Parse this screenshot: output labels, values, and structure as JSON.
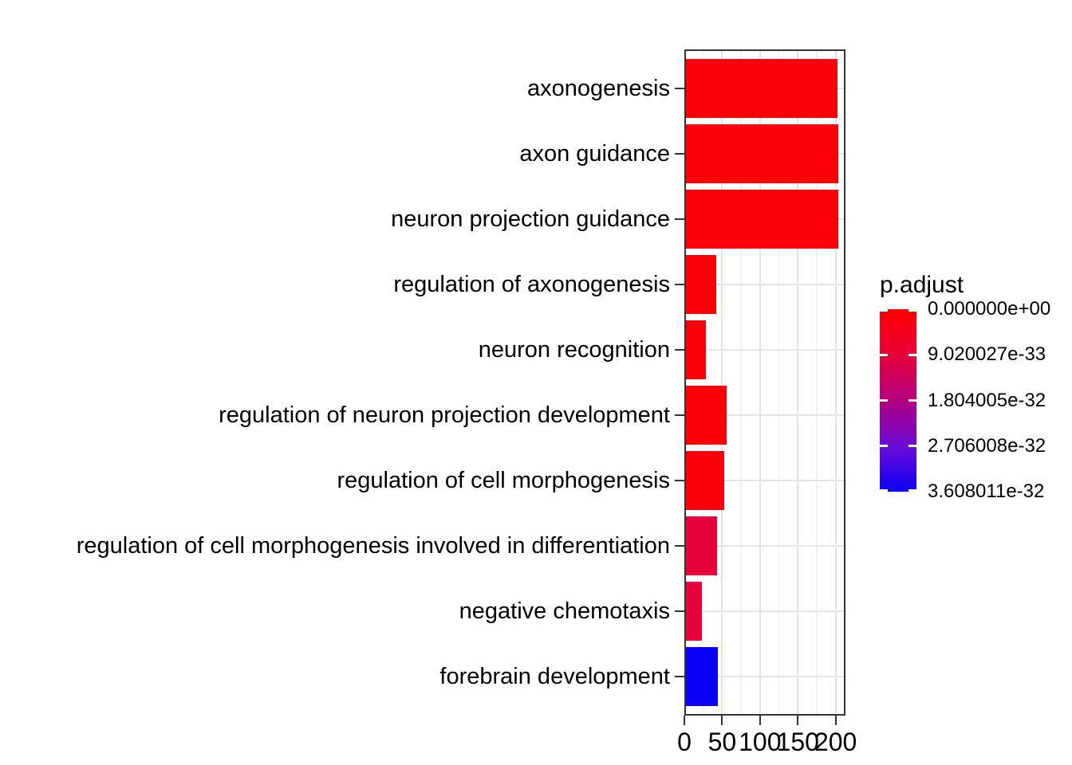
{
  "chart_data": {
    "type": "bar",
    "orientation": "horizontal",
    "title": "",
    "xlabel": "",
    "ylabel": "",
    "categories": [
      "axonogenesis",
      "axon guidance",
      "neuron projection guidance",
      "regulation of axonogenesis",
      "neuron recognition",
      "regulation of neuron projection development",
      "regulation of cell morphogenesis",
      "regulation of cell morphogenesis involved in differentiation",
      "negative chemotaxis",
      "forebrain development"
    ],
    "values": [
      202,
      204,
      204,
      42,
      28,
      56,
      53,
      43,
      23,
      44
    ],
    "bar_colors": [
      "#FA0008",
      "#FA0008",
      "#FA0008",
      "#FA0008",
      "#FA0008",
      "#FA0008",
      "#FA0008",
      "#E6003C",
      "#E6003C",
      "#0B00F5"
    ],
    "x_tick_values": [
      0,
      50,
      100,
      150,
      200
    ],
    "x_tick_labels": [
      "0",
      "50",
      "100",
      "150",
      "200"
    ],
    "x_minor_values": [
      25,
      75,
      125,
      175
    ],
    "xlim": [
      0,
      213
    ],
    "grid": {
      "vertical": "major+minor",
      "horizontal": "major-at-category-centers"
    },
    "legend": {
      "title": "p.adjust",
      "position": "right",
      "type": "color-gradient",
      "gradient_stops": [
        "#FF0000",
        "#E8003A",
        "#B1007F",
        "#6D0BD8",
        "#0B00F5"
      ],
      "tick_labels": [
        "0.000000e+00",
        "9.020027e-33",
        "1.804005e-32",
        "2.706008e-32",
        "3.608011e-32"
      ]
    }
  },
  "colors": {
    "grid_major": "#E4E4E4",
    "grid_minor": "#F1F1F1",
    "panel_border": "#333333",
    "tick": "#333333",
    "text": "#000000",
    "background": "#FFFFFF"
  }
}
